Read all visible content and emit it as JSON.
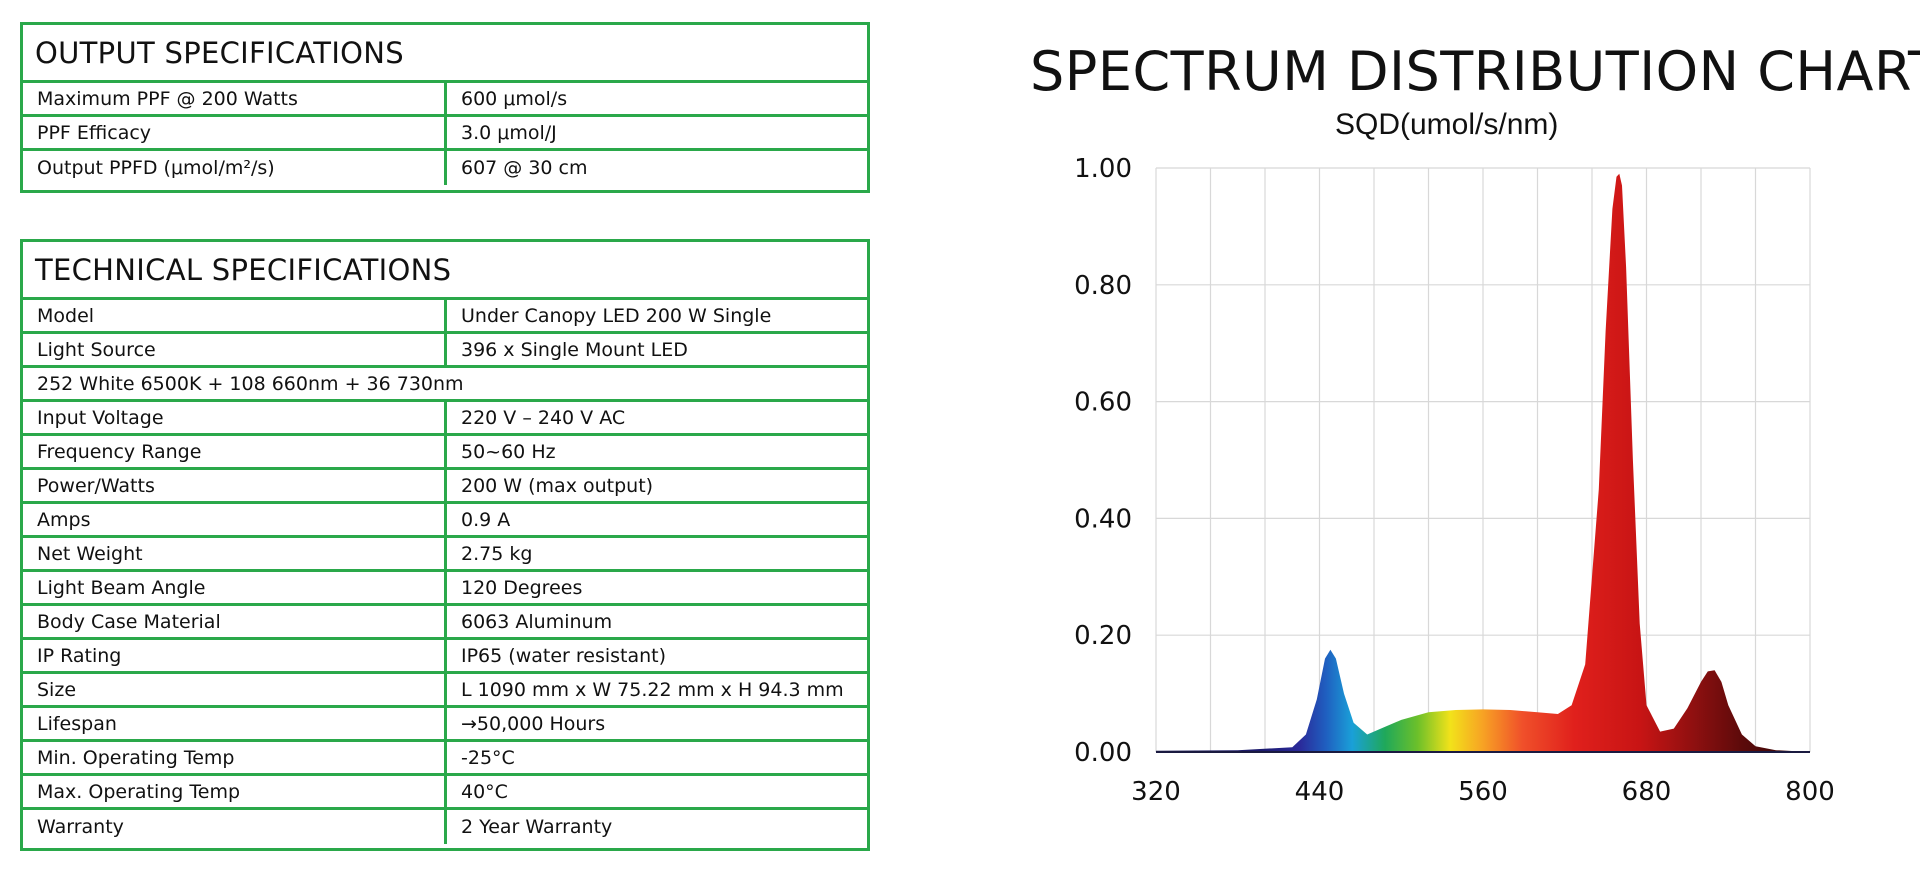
{
  "output": {
    "title": "OUTPUT SPECIFICATIONS",
    "rows": [
      {
        "label": "Maximum PPF @ 200 Watts",
        "value": "600 μmol/s"
      },
      {
        "label": "PPF Efficacy",
        "value": "3.0 μmol/J"
      },
      {
        "label": "Output PPFD (μmol/m²/s)",
        "value": "607 @ 30 cm"
      }
    ]
  },
  "technical": {
    "title": "TECHNICAL SPECIFICATIONS",
    "rows": [
      {
        "label": "Model",
        "value": "Under Canopy LED 200 W Single"
      },
      {
        "label": "Light Source",
        "value": "396 x Single Mount LED"
      },
      {
        "full": "252 White 6500K + 108 660nm + 36 730nm"
      },
      {
        "label": "Input Voltage",
        "value": "220 V – 240 V AC"
      },
      {
        "label": "Frequency Range",
        "value": "50~60 Hz"
      },
      {
        "label": "Power/Watts",
        "value": "200 W (max output)"
      },
      {
        "label": "Amps",
        "value": "0.9 A"
      },
      {
        "label": "Net Weight",
        "value": "2.75 kg"
      },
      {
        "label": "Light Beam Angle",
        "value": "120 Degrees"
      },
      {
        "label": "Body Case Material",
        "value": "6063 Aluminum"
      },
      {
        "label": "IP Rating",
        "value": "IP65 (water resistant)"
      },
      {
        "label": "Size",
        "value": "L 1090 mm x W 75.22 mm x H 94.3 mm"
      },
      {
        "label": "Lifespan",
        "value": "→50,000 Hours"
      },
      {
        "label": "Min. Operating Temp",
        "value": "-25°C"
      },
      {
        "label": "Max. Operating Temp",
        "value": "40°C"
      },
      {
        "label": "Warranty",
        "value": "2 Year Warranty"
      }
    ]
  },
  "chart_data": {
    "type": "area",
    "title": "SPECTRUM DISTRIBUTION CHART",
    "subtitle": "SQD(umol/s/nm)",
    "xlabel": "",
    "ylabel": "",
    "xlim": [
      320,
      800
    ],
    "ylim": [
      0,
      1.0
    ],
    "x_ticks": [
      "320",
      "440",
      "560",
      "680",
      "800"
    ],
    "y_ticks": [
      "0.00",
      "0.20",
      "0.40",
      "0.60",
      "0.80",
      "1.00"
    ],
    "grid": true,
    "x": [
      320,
      380,
      420,
      430,
      438,
      444,
      448,
      452,
      458,
      465,
      475,
      485,
      500,
      520,
      540,
      560,
      580,
      600,
      615,
      625,
      635,
      645,
      650,
      655,
      658,
      660,
      662,
      665,
      670,
      675,
      680,
      690,
      700,
      710,
      720,
      725,
      730,
      735,
      740,
      750,
      760,
      775,
      800
    ],
    "y": [
      0.002,
      0.003,
      0.008,
      0.03,
      0.09,
      0.16,
      0.175,
      0.16,
      0.1,
      0.05,
      0.03,
      0.04,
      0.055,
      0.068,
      0.072,
      0.073,
      0.072,
      0.068,
      0.065,
      0.08,
      0.15,
      0.45,
      0.72,
      0.93,
      0.985,
      0.99,
      0.97,
      0.83,
      0.5,
      0.22,
      0.08,
      0.035,
      0.04,
      0.075,
      0.12,
      0.138,
      0.14,
      0.12,
      0.08,
      0.03,
      0.01,
      0.003,
      0.0
    ]
  }
}
